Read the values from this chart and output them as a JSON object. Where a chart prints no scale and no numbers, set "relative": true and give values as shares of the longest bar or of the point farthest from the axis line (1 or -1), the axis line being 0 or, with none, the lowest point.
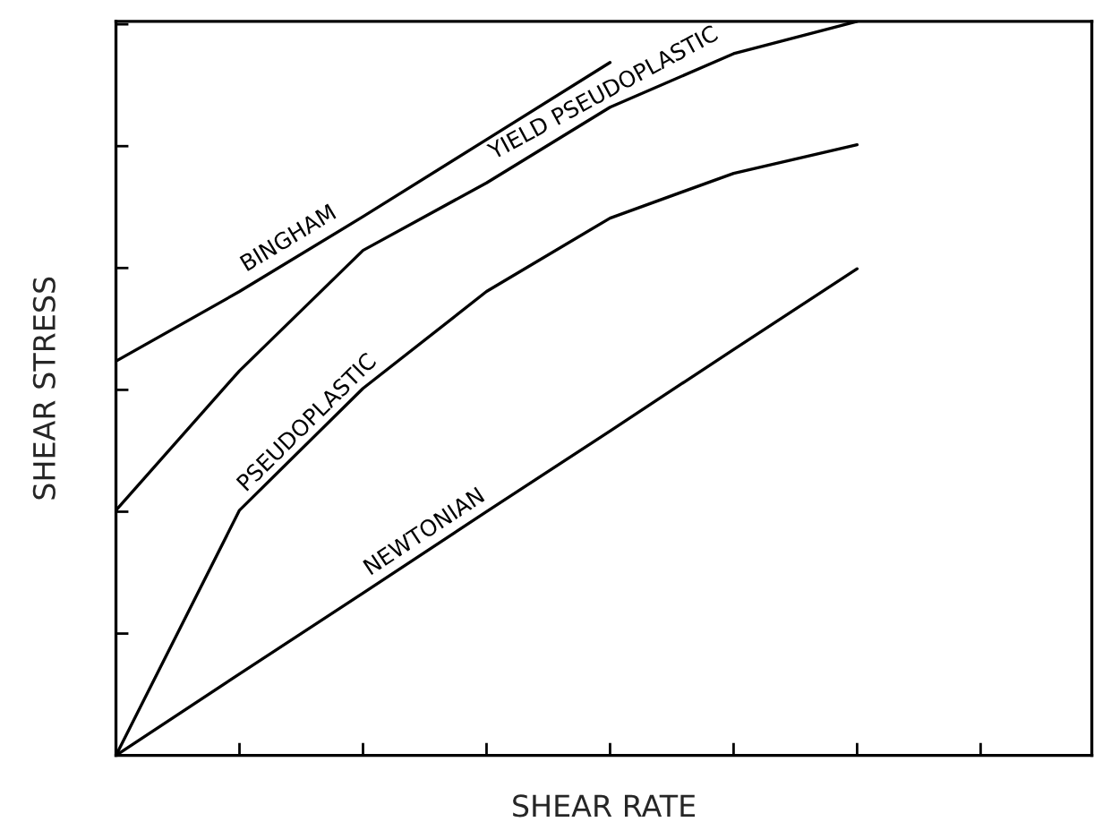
{
  "chart_data": {
    "type": "line",
    "relative": true,
    "xlabel": "SHEAR RATE",
    "ylabel": "SHEAR STRESS",
    "categories": [
      null,
      null,
      null,
      null,
      null,
      null,
      null,
      null
    ],
    "series": [
      {
        "name": "BINGHAM",
        "color": "#000000",
        "values": [
          0.537,
          0.632,
          0.734,
          0.839,
          0.944,
          null,
          null,
          null
        ]
      },
      {
        "name": "YIELD PSEUDOPLASTIC",
        "color": "#000000",
        "values": [
          0.334,
          0.524,
          0.688,
          0.78,
          0.883,
          0.956,
          1.0,
          null
        ]
      },
      {
        "name": "PSEUDOPLASTIC",
        "color": "#000000",
        "values": [
          0,
          0.334,
          0.5,
          0.632,
          0.732,
          0.793,
          0.832,
          null
        ]
      },
      {
        "name": "NEWTONIAN",
        "color": "#000000",
        "values": [
          0,
          0.111,
          0.221,
          0.332,
          0.442,
          0.553,
          0.663,
          null
        ]
      }
    ],
    "marker": "none",
    "line_style": "solid",
    "grid": false,
    "legend": false
  }
}
